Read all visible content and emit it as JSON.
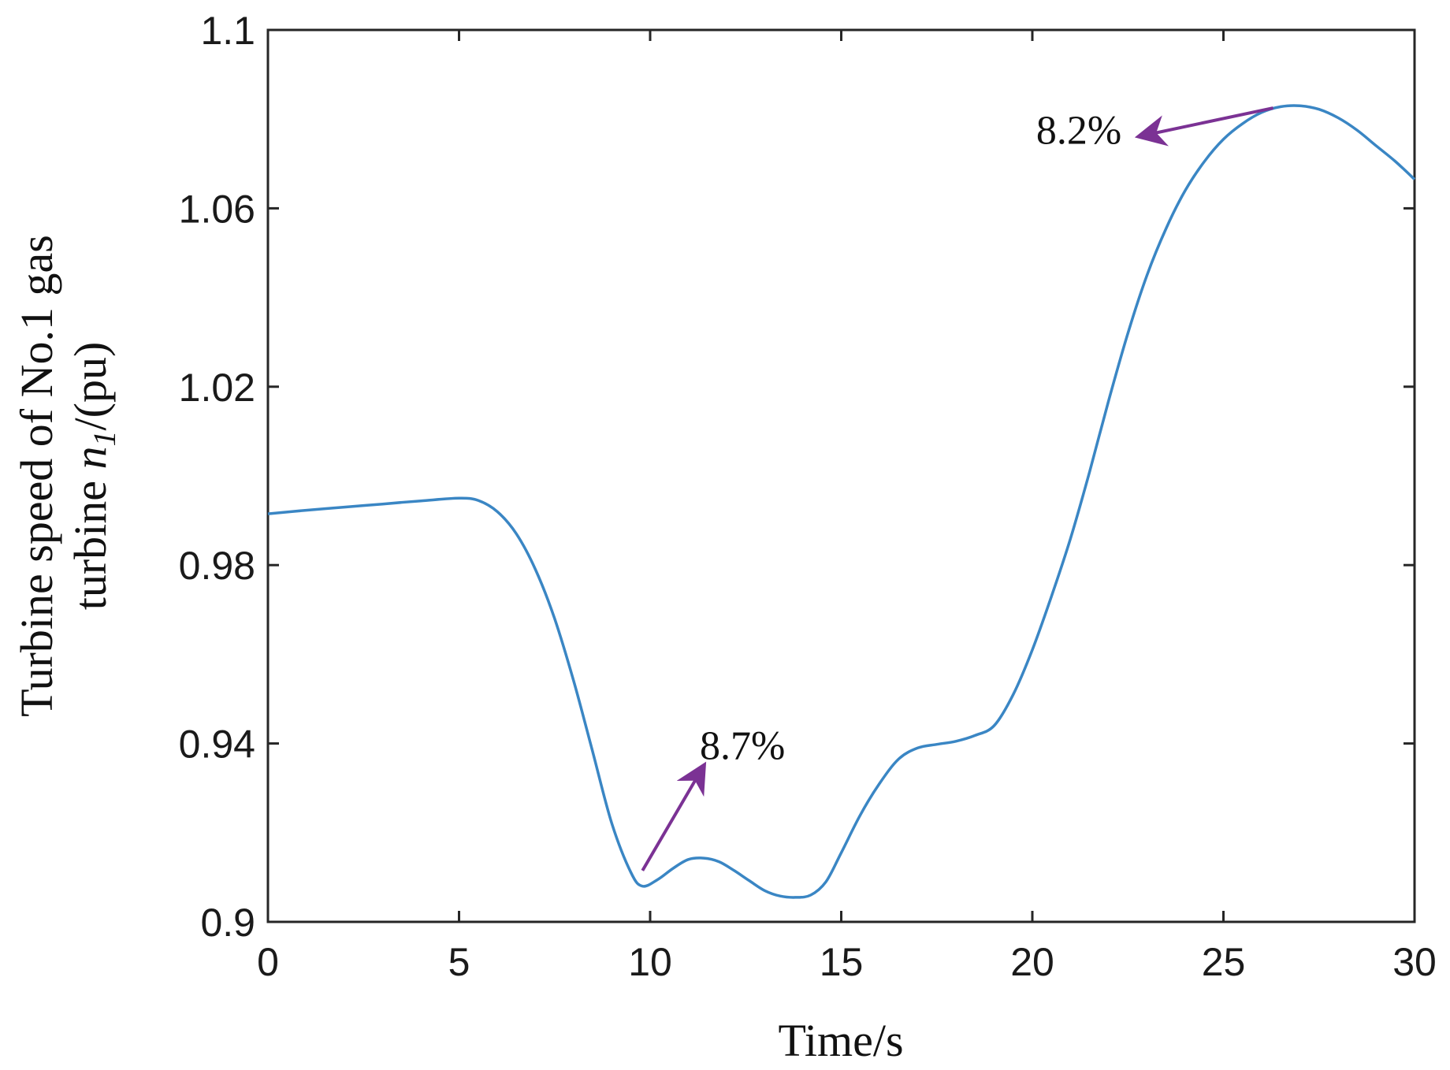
{
  "chart_data": {
    "type": "line",
    "title": "",
    "xlabel": "Time/s",
    "ylabel_line1": "Turbine speed of No.1 gas",
    "ylabel_line2_prefix": "turbine ",
    "ylabel_symbol": "n",
    "ylabel_subscript": "1",
    "ylabel_suffix": "/(pu)",
    "xlim": [
      0,
      30
    ],
    "ylim": [
      0.9,
      1.1
    ],
    "xticks": [
      0,
      5,
      10,
      15,
      20,
      25,
      30
    ],
    "xtick_labels": [
      "0",
      "5",
      "10",
      "15",
      "20",
      "25",
      "30"
    ],
    "yticks": [
      0.9,
      0.94,
      0.98,
      1.02,
      1.06,
      1.1
    ],
    "ytick_labels": [
      "0.9",
      "0.94",
      "0.98",
      "1.02",
      "1.06",
      "1.1"
    ],
    "grid": false,
    "series": [
      {
        "color": "#3a86c4",
        "x": [
          0,
          1,
          2,
          3,
          4,
          5,
          5.5,
          6,
          6.5,
          7,
          7.5,
          8,
          8.5,
          9,
          9.5,
          9.8,
          10.2,
          10.6,
          11,
          11.4,
          11.8,
          12.2,
          12.6,
          13,
          13.4,
          13.8,
          14.2,
          14.6,
          15,
          15.5,
          16,
          16.5,
          17,
          17.5,
          18,
          18.5,
          19,
          19.5,
          20,
          20.5,
          21,
          21.5,
          22,
          22.5,
          23,
          23.5,
          24,
          24.5,
          25,
          25.5,
          26,
          26.5,
          27,
          27.5,
          28,
          28.5,
          29,
          29.5,
          30
        ],
        "y": [
          0.9915,
          0.9923,
          0.993,
          0.9937,
          0.9944,
          0.995,
          0.9945,
          0.992,
          0.987,
          0.979,
          0.968,
          0.954,
          0.938,
          0.922,
          0.911,
          0.908,
          0.9095,
          0.912,
          0.914,
          0.9143,
          0.9135,
          0.9115,
          0.9092,
          0.907,
          0.9058,
          0.9055,
          0.906,
          0.909,
          0.9155,
          0.924,
          0.931,
          0.9365,
          0.939,
          0.9398,
          0.9405,
          0.9418,
          0.944,
          0.951,
          0.961,
          0.973,
          0.986,
          1.001,
          1.017,
          1.032,
          1.045,
          1.0555,
          1.064,
          1.0705,
          1.0755,
          1.079,
          1.0815,
          1.0828,
          1.083,
          1.0822,
          1.0803,
          1.0775,
          1.074,
          1.0705,
          1.0665
        ]
      }
    ],
    "annotations": [
      {
        "text": "8.7%",
        "x": 11.3,
        "y": 0.9365,
        "arrow_from": [
          9.8,
          0.9115
        ],
        "arrow_to": [
          11.3,
          0.9335
        ],
        "color": "#7b3294"
      },
      {
        "text": "8.2%",
        "x": 20.1,
        "y": 1.0745,
        "arrow_from": [
          26.3,
          1.0825
        ],
        "arrow_to": [
          23.0,
          1.0765
        ],
        "color": "#7b3294"
      }
    ]
  }
}
